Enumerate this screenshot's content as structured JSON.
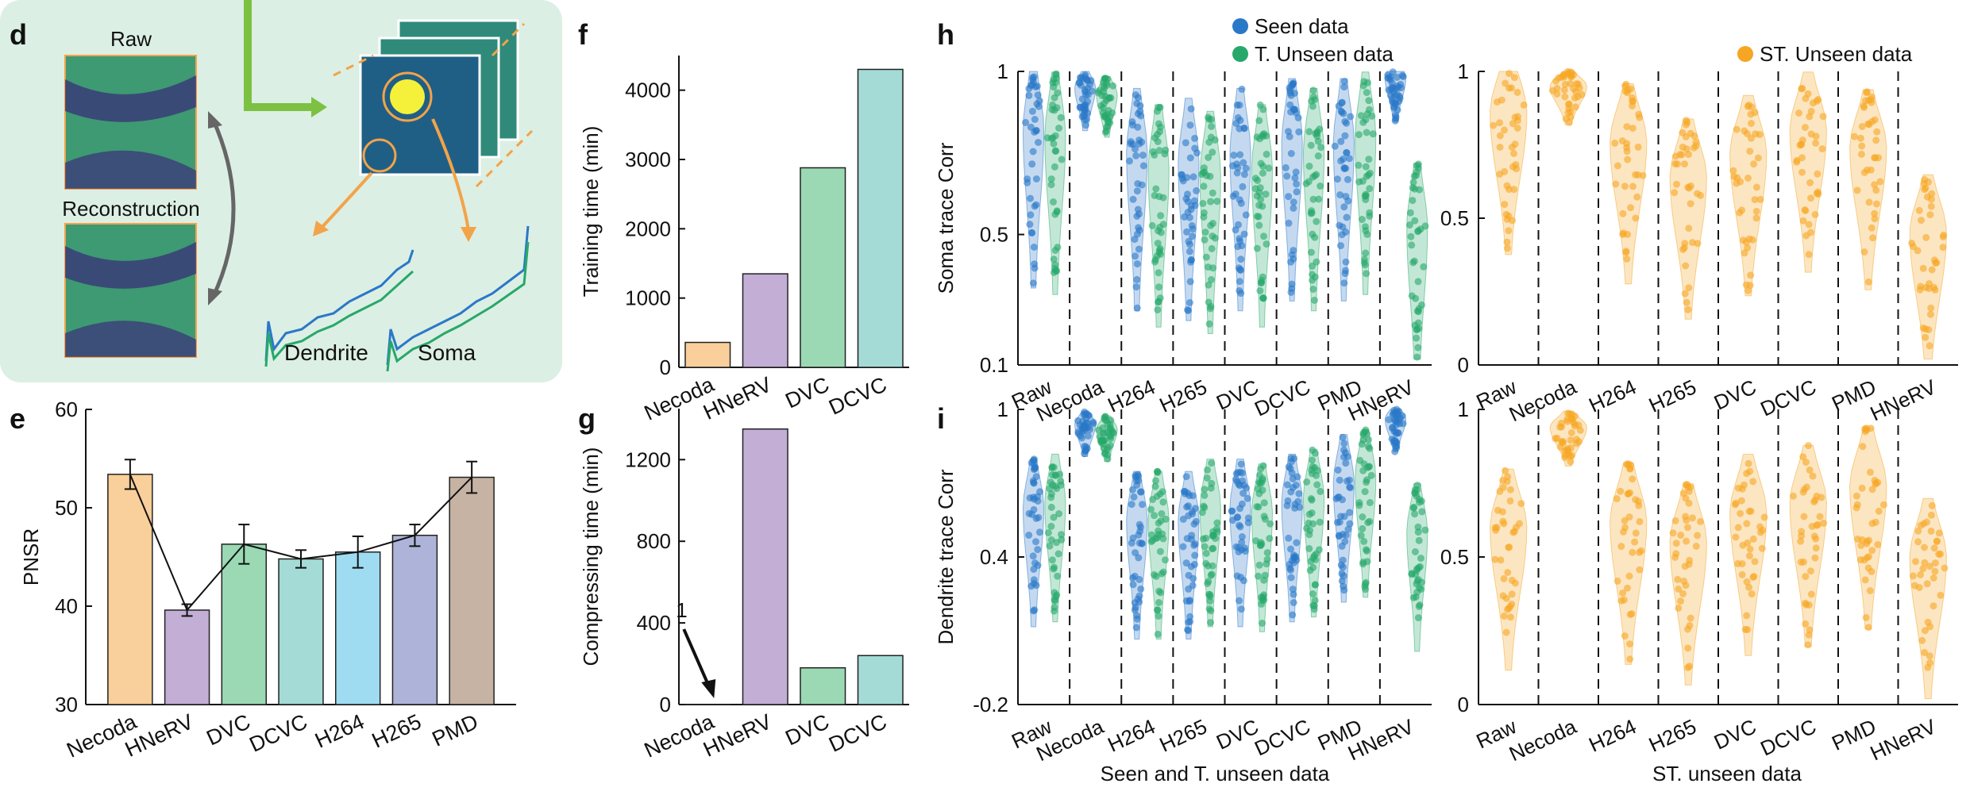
{
  "panel_labels": {
    "d": "d",
    "e": "e",
    "f": "f",
    "g": "g",
    "h": "h",
    "i": "i"
  },
  "panel_d": {
    "raw_label": "Raw",
    "reconstruction_label": "Reconstruction",
    "dendrite_label": "Dendrite",
    "soma_label": "Soma",
    "bg_color": "#dcefe4"
  },
  "colors": {
    "seen": "#2a78c8",
    "t_unseen": "#27a86a",
    "st_unseen": "#f6a623",
    "bars": [
      "#f9cf9b",
      "#c3aed6",
      "#9bd9b5",
      "#a4dbd6",
      "#9fdcf2",
      "#aeb4d9",
      "#c6b3a3"
    ]
  },
  "chart_data": [
    {
      "id": "e",
      "type": "bar",
      "categories": [
        "Necoda",
        "HNeRV",
        "DVC",
        "DCVC",
        "H264",
        "H265",
        "PMD"
      ],
      "values": [
        53.4,
        39.6,
        46.3,
        44.8,
        45.5,
        47.2,
        53.1
      ],
      "errors": [
        1.5,
        0.6,
        2.0,
        0.9,
        1.6,
        1.1,
        1.6
      ],
      "line_overlay": true,
      "ylabel": "PNSR",
      "ylim": [
        30,
        60
      ],
      "yticks": [
        30,
        40,
        50,
        60
      ]
    },
    {
      "id": "f",
      "type": "bar",
      "categories": [
        "Necoda",
        "HNeRV",
        "DVC",
        "DCVC"
      ],
      "values": [
        360,
        1350,
        2880,
        4300
      ],
      "ylabel": "Training time (min)",
      "ylim": [
        0,
        4500
      ],
      "yticks": [
        0,
        1000,
        2000,
        3000,
        4000
      ]
    },
    {
      "id": "g",
      "type": "bar",
      "categories": [
        "Necoda",
        "HNeRV",
        "DVC",
        "DCVC"
      ],
      "values": [
        1,
        1350,
        180,
        240
      ],
      "ylabel": "Compressing time (min)",
      "ylim": [
        0,
        1450
      ],
      "yticks": [
        0,
        400,
        800,
        1200
      ],
      "annotation": "1",
      "xtick_labels": [
        "Necoda",
        "HNeRV",
        "DVC",
        "DCVC"
      ]
    },
    {
      "id": "h-left",
      "type": "violin-swarm",
      "categories": [
        "Raw",
        "Necoda",
        "H264",
        "H265",
        "DVC",
        "DCVC",
        "PMD",
        "HNeRV"
      ],
      "ylabel": "Soma trace Corr",
      "yticks": [
        "0.1",
        "0.5",
        "1"
      ],
      "ylim": [
        0.1,
        1
      ],
      "series": [
        {
          "name": "Seen data",
          "medians": [
            0.82,
            0.95,
            0.75,
            0.72,
            0.75,
            0.78,
            0.78,
            0.98
          ]
        },
        {
          "name": "T. Unseen data",
          "medians": [
            0.8,
            0.93,
            0.7,
            0.68,
            0.7,
            0.75,
            0.8,
            0.52
          ]
        }
      ]
    },
    {
      "id": "h-right",
      "type": "violin-swarm",
      "categories": [
        "Raw",
        "Necoda",
        "H264",
        "H265",
        "DVC",
        "DCVC",
        "PMD",
        "HNeRV"
      ],
      "yticks": [
        "0",
        "0.5",
        "1"
      ],
      "ylim": [
        0,
        1
      ],
      "series": [
        {
          "name": "ST. Unseen data",
          "medians": [
            0.86,
            0.95,
            0.76,
            0.64,
            0.72,
            0.8,
            0.74,
            0.45
          ]
        }
      ]
    },
    {
      "id": "i-left",
      "type": "violin-swarm",
      "categories": [
        "Raw",
        "Necoda",
        "H264",
        "H265",
        "DVC",
        "DCVC",
        "PMD",
        "HNeRV"
      ],
      "ylabel": "Dendrite trace Corr",
      "yticks": [
        "-0.2",
        "0.4",
        "1"
      ],
      "ylim": [
        -0.2,
        1
      ],
      "series": [
        {
          "name": "Seen data",
          "medians": [
            0.6,
            0.94,
            0.55,
            0.55,
            0.6,
            0.62,
            0.7,
            0.96
          ]
        },
        {
          "name": "T. Unseen data",
          "medians": [
            0.62,
            0.92,
            0.55,
            0.6,
            0.58,
            0.64,
            0.72,
            0.5
          ]
        }
      ]
    },
    {
      "id": "i-right",
      "type": "violin-swarm",
      "categories": [
        "Raw",
        "Necoda",
        "H264",
        "H265",
        "DVC",
        "DCVC",
        "PMD",
        "HNeRV"
      ],
      "yticks": [
        "0",
        "0.5",
        "1"
      ],
      "ylim": [
        0,
        1
      ],
      "series": [
        {
          "name": "ST. Unseen data",
          "medians": [
            0.6,
            0.94,
            0.62,
            0.55,
            0.65,
            0.68,
            0.74,
            0.5
          ]
        }
      ]
    }
  ],
  "legends": {
    "seen": "Seen data",
    "t_unseen": "T. Unseen data",
    "st_unseen": "ST. Unseen data"
  },
  "xlabels": {
    "h_left": "Seen and T. unseen data",
    "h_right": "ST. unseen data"
  }
}
